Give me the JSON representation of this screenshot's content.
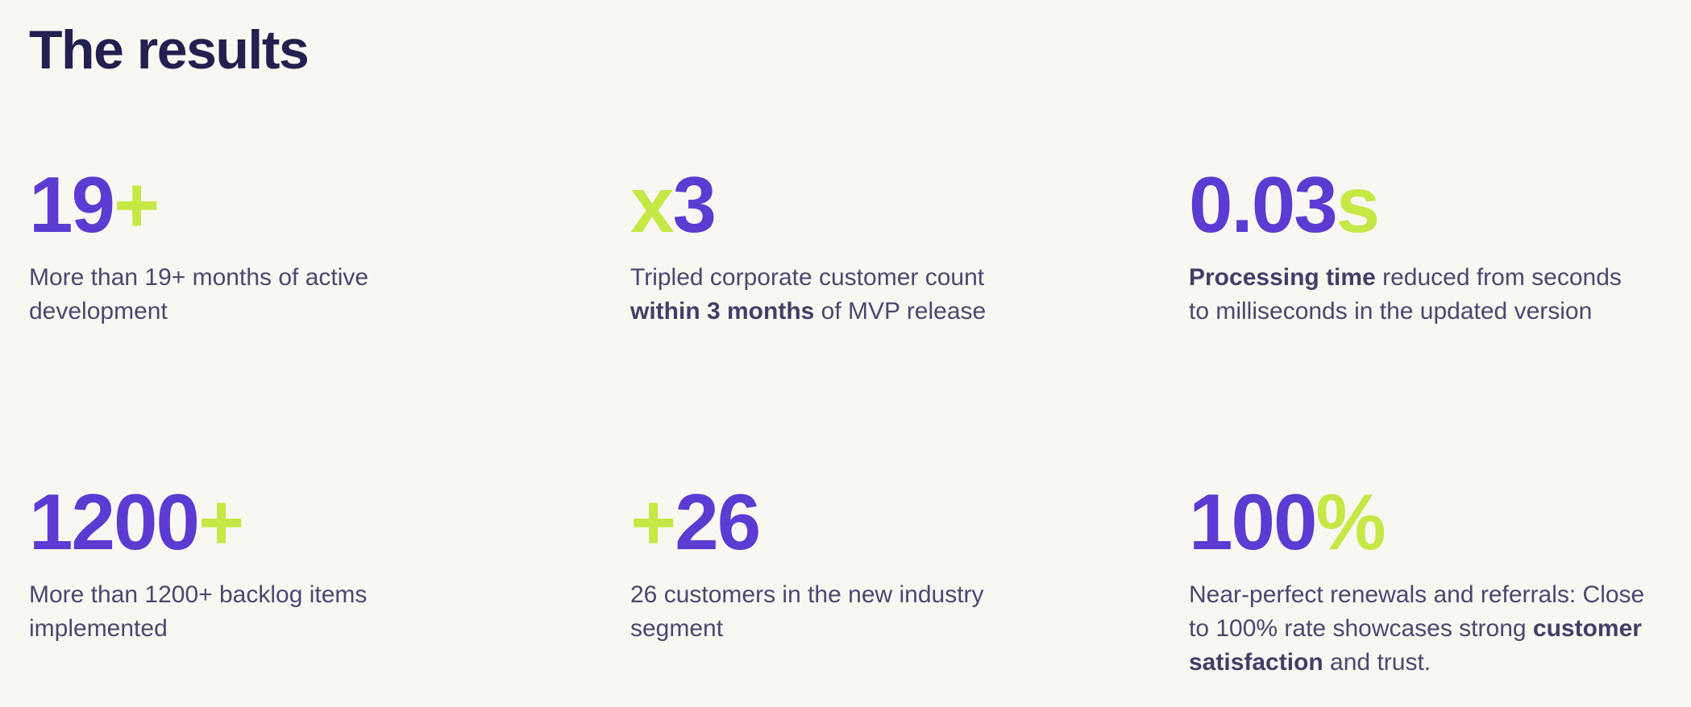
{
  "title": "The results",
  "colors": {
    "background": "#f9f7f1",
    "title": "#22204f",
    "primary": "#5b3bd1",
    "accent": "#c4e844",
    "text": "#4c4670"
  },
  "stats": [
    {
      "value": "19",
      "suffix": "+",
      "line1": "More than 19+ months of active",
      "line2": "development"
    },
    {
      "prefix": "x",
      "value": "3",
      "line1": "Tripled corporate customer count",
      "line2_bold": "within 3 months",
      "line2_rest": " of MVP release"
    },
    {
      "value": "0.03",
      "suffix": "s",
      "line1_bold": "Processing time",
      "line1_rest": " reduced from seconds",
      "line2": "to milliseconds in the updated version"
    },
    {
      "value": "1200",
      "suffix": "+",
      "line1": "More than 1200+ backlog items",
      "line2": "implemented"
    },
    {
      "prefix": "+",
      "value": "26",
      "line1": "26 customers in the new industry",
      "line2": "segment"
    },
    {
      "value": "100",
      "suffix": "%",
      "line1": "Near-perfect renewals and referrals: Close",
      "line2_rest": "to 100% rate showcases strong ",
      "line2_bold": "customer",
      "line3_bold": "satisfaction",
      "line3_rest": " and trust."
    }
  ]
}
